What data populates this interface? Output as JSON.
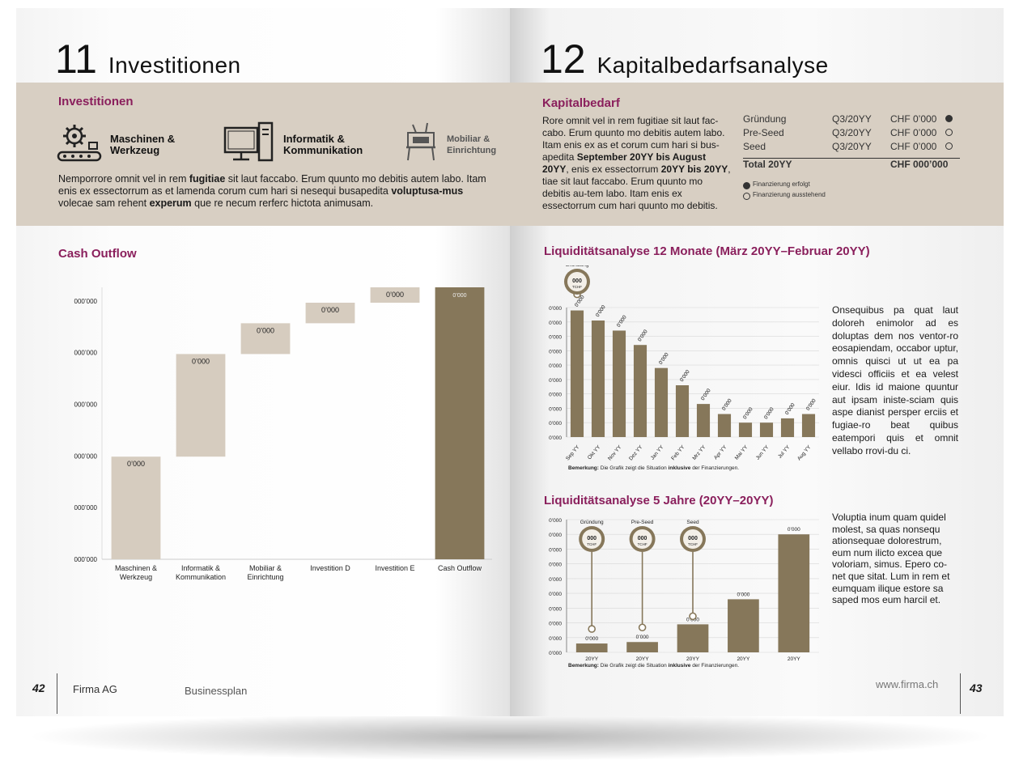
{
  "colors": {
    "accent": "#8a1f5c",
    "band": "#d8cfc3",
    "bar_light": "#d6ccbf",
    "bar_dark": "#86775a"
  },
  "left": {
    "chapter_num": "11",
    "chapter_title": "Investitionen",
    "section_title": "Investitionen",
    "icons": [
      {
        "name": "gear-conveyor-icon",
        "label1": "Maschinen &",
        "label2": "Werkzeug"
      },
      {
        "name": "computer-icon",
        "label1": "Informatik &",
        "label2": "Kommunikation"
      },
      {
        "name": "furniture-icon",
        "label1": "Mobiliar &",
        "label2": "Einrichtung"
      }
    ],
    "paragraph": [
      {
        "t": "Nemporrore omnit vel in rem ",
        "b": false
      },
      {
        "t": "fugitiae",
        "b": true
      },
      {
        "t": " sit laut faccabo. Erum quunto mo debitis autem labo. Itam enis ex essectorrum as et lamenda corum cum hari si nesequi busapedita ",
        "b": false
      },
      {
        "t": "voluptusa-mus",
        "b": true
      },
      {
        "t": " volecae sam rehent ",
        "b": false
      },
      {
        "t": "experum",
        "b": true
      },
      {
        "t": " que re necum rerferc hictota animusam.",
        "b": false
      }
    ],
    "cash_title": "Cash Outflow",
    "page_num": "42",
    "company": "Firma AG",
    "doc": "Businessplan"
  },
  "right": {
    "chapter_num": "12",
    "chapter_title": "Kapitalbedarfsanalyse",
    "section_title": "Kapitalbedarf",
    "paragraph": [
      {
        "t": "Rore omnit vel in rem fugitiae sit laut fac-cabo. Erum quunto mo debitis autem labo. Itam enis ex as et corum cum hari si bus-apedita ",
        "b": false
      },
      {
        "t": "September 20YY bis August 20YY",
        "b": true
      },
      {
        "t": ", enis ex essectorrum ",
        "b": false
      },
      {
        "t": "20YY bis 20YY",
        "b": true
      },
      {
        "t": ", tiae sit laut faccabo. Erum quunto mo debitis au-tem labo. Itam enis ex essectorrum cum hari quunto mo debitis.",
        "b": false
      }
    ],
    "table": [
      {
        "phase": "Gründung",
        "date": "Q3/20YY",
        "amount": "CHF 0’000",
        "done": true
      },
      {
        "phase": "Pre-Seed",
        "date": "Q3/20YY",
        "amount": "CHF 0’000",
        "done": false
      },
      {
        "phase": "Seed",
        "date": "Q3/20YY",
        "amount": "CHF 0’000",
        "done": false
      }
    ],
    "total_label": "Total 20YY",
    "total_value": "CHF 000’000",
    "legend_done": "Finanzierung erfolgt",
    "legend_pending": "Finanzierung ausstehend",
    "liq12_title": "Liquiditätsanalyse 12 Monate (März 20YY–Februar 20YY)",
    "liq12_text": "Onsequibus pa quat laut doloreh enimolor ad es doluptas dem nos ventor-ro eosapiendam, occabor uptur, omnis quisci ut ut ea pa videsci officiis et ea velest eiur. Idis id maione quuntur aut ipsam iniste-sciam quis aspe dianist persper erciis et fugiae-ro beat quibus eatempori quis et omnit vellabo rrovi-du ci.",
    "liq5_title": "Liquiditätsanalyse 5 Jahre (20YY–20YY)",
    "liq5_text": "Voluptia inum quam quidel molest, sa quas nonsequ ationsequae dolorestrum, eum num ilicto excea que voloriam, simus. Epero co-net que sitat. Lum in rem et eumquam ilique estore sa saped mos eum harcil et.",
    "note_prefix": "Bemerkung:",
    "note_mid": " Die Grafik zeigt die Situation ",
    "note_bold": "inklusive",
    "note_suffix": " der Finanzierungen.",
    "website": "www.firma.ch",
    "page_num": "43"
  },
  "chart_data": [
    {
      "type": "bar",
      "chart_kind": "waterfall",
      "title": "Cash Outflow",
      "categories": [
        "Maschinen & Werkzeug",
        "Informatik & Kommunikation",
        "Mobiliar & Einrichtung",
        "Investition D",
        "Investition E",
        "Cash Outflow"
      ],
      "values": [
        4,
        4,
        1.2,
        0.8,
        0.6,
        10.6
      ],
      "data_labels": [
        "0’000",
        "0’000",
        "0’000",
        "0’000",
        "0’000",
        "0’000"
      ],
      "y_tick_labels": [
        "000’000",
        "000’000",
        "000’000",
        "000’000",
        "000’000",
        "000’000"
      ],
      "ylim": [
        0,
        10.6
      ],
      "grid": false
    },
    {
      "type": "bar",
      "title": "Liquiditätsanalyse 12 Monate (März 20YY–Februar 20YY)",
      "categories": [
        "Sep YY",
        "Okt YY",
        "Nov YY",
        "Dez YY",
        "Jan YY",
        "Feb YY",
        "Mrz YY",
        "Apr YY",
        "Mai YY",
        "Jun YY",
        "Jul YY",
        "Aug YY"
      ],
      "values": [
        8.8,
        8.1,
        7.4,
        6.4,
        4.8,
        3.6,
        2.3,
        1.6,
        1.0,
        1.0,
        1.3,
        1.6
      ],
      "data_labels": [
        "0’000",
        "0’000",
        "0’000",
        "0’000",
        "0’000",
        "0’000",
        "0’000",
        "0’000",
        "0’000",
        "0’000",
        "0’000",
        "0’000"
      ],
      "y_tick_labels": [
        "0’000",
        "0’000",
        "0’000",
        "0’000",
        "0’000",
        "0’000",
        "0’000",
        "0’000",
        "0’000",
        "0’000"
      ],
      "ylim": [
        0,
        9
      ],
      "grid": true,
      "annotations": [
        {
          "label": "Gründung",
          "value": "000",
          "unit": "TCHF",
          "category": "Sep YY"
        }
      ]
    },
    {
      "type": "bar",
      "title": "Liquiditätsanalyse 5 Jahre (20YY–20YY)",
      "categories": [
        "20YY",
        "20YY",
        "20YY",
        "20YY",
        "20YY"
      ],
      "values": [
        0.6,
        0.7,
        1.9,
        3.6,
        8.0
      ],
      "data_labels": [
        "0’000",
        "0’000",
        "0’000",
        "0’000",
        "0’000"
      ],
      "y_tick_labels": [
        "0’000",
        "0’000",
        "0’000",
        "0’000",
        "0’000",
        "0’000",
        "0’000",
        "0’000",
        "0’000",
        "0’000"
      ],
      "ylim": [
        0,
        9
      ],
      "grid": true,
      "annotations": [
        {
          "label": "Gründung",
          "value": "000",
          "unit": "TCHF",
          "category_index": 0
        },
        {
          "label": "Pre-Seed",
          "value": "000",
          "unit": "TCHF",
          "category_index": 1
        },
        {
          "label": "Seed",
          "value": "000",
          "unit": "TCHF",
          "category_index": 2
        }
      ]
    }
  ]
}
